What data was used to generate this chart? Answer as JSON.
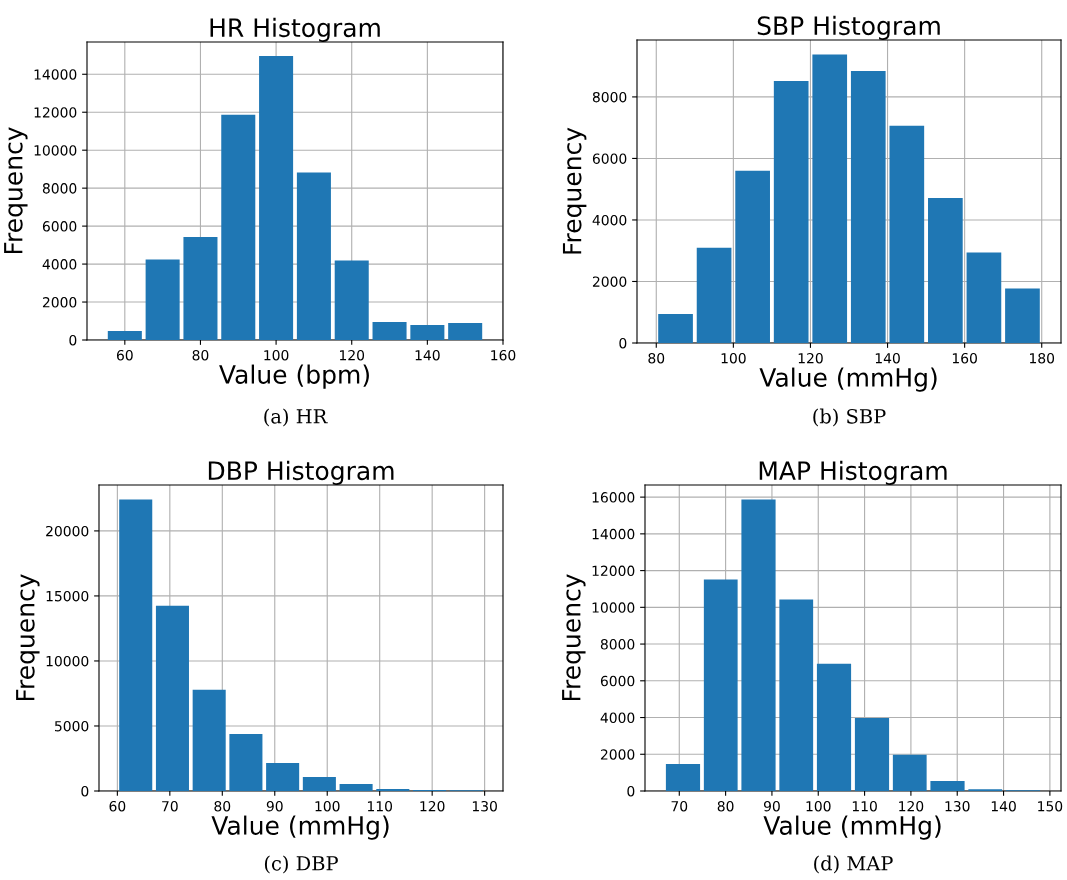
{
  "chart_data": [
    {
      "type": "histogram",
      "title": "HR Histogram",
      "xlabel": "Value (bpm)",
      "ylabel": "Frequency",
      "annotations": [
        "(a) HR"
      ],
      "color": "#1f77b4",
      "grid": true,
      "bins": [
        55,
        65,
        75,
        85,
        95,
        105,
        115,
        125,
        135,
        145,
        155
      ],
      "values": [
        480,
        4240,
        5430,
        11870,
        14960,
        8830,
        4190,
        950,
        790,
        890
      ],
      "xlim": [
        50,
        160
      ],
      "xticks": [
        60,
        80,
        100,
        120,
        140,
        160
      ],
      "ylim": [
        0,
        15700
      ],
      "yticks": [
        0,
        2000,
        4000,
        6000,
        8000,
        10000,
        12000,
        14000
      ]
    },
    {
      "type": "histogram",
      "title": "SBP Histogram",
      "xlabel": "Value (mmHg)",
      "ylabel": "Frequency",
      "annotations": [
        "(b) SBP"
      ],
      "color": "#1f77b4",
      "grid": true,
      "bins": [
        80,
        90,
        100,
        110,
        120,
        130,
        140,
        150,
        160,
        170,
        180
      ],
      "values": [
        940,
        3100,
        5600,
        8520,
        9380,
        8840,
        7060,
        4710,
        2940,
        1770
      ],
      "xlim": [
        75,
        185
      ],
      "xticks": [
        80,
        100,
        120,
        140,
        160,
        180
      ],
      "ylim": [
        0,
        9850
      ],
      "yticks": [
        0,
        2000,
        4000,
        6000,
        8000
      ]
    },
    {
      "type": "histogram",
      "title": "DBP Histogram",
      "xlabel": "Value (mmHg)",
      "ylabel": "Frequency",
      "annotations": [
        "(c) DBP"
      ],
      "color": "#1f77b4",
      "grid": true,
      "bins": [
        60,
        67,
        74,
        81,
        88,
        95,
        102,
        109,
        116,
        123,
        130
      ],
      "values": [
        22410,
        14250,
        7780,
        4390,
        2160,
        1080,
        540,
        150,
        80,
        50
      ],
      "xlim": [
        56.5,
        133.5
      ],
      "xticks": [
        60,
        70,
        80,
        90,
        100,
        110,
        120,
        130
      ],
      "ylim": [
        0,
        23530
      ],
      "yticks": [
        0,
        5000,
        10000,
        15000,
        20000
      ]
    },
    {
      "type": "histogram",
      "title": "MAP Histogram",
      "xlabel": "Value (mmHg)",
      "ylabel": "Frequency",
      "annotations": [
        "(d) MAP"
      ],
      "color": "#1f77b4",
      "grid": true,
      "bins": [
        66.7,
        74.9,
        83.0,
        91.2,
        99.3,
        107.5,
        115.7,
        123.8,
        132.0,
        140.1,
        148.3
      ],
      "values": [
        1470,
        11510,
        15870,
        10420,
        6930,
        3980,
        1980,
        550,
        90,
        40
      ],
      "xlim": [
        62.6,
        152.4
      ],
      "xticks": [
        70,
        80,
        90,
        100,
        110,
        120,
        130,
        140,
        150
      ],
      "ylim": [
        0,
        16660
      ],
      "yticks": [
        0,
        2000,
        4000,
        6000,
        8000,
        10000,
        12000,
        14000,
        16000
      ]
    }
  ]
}
